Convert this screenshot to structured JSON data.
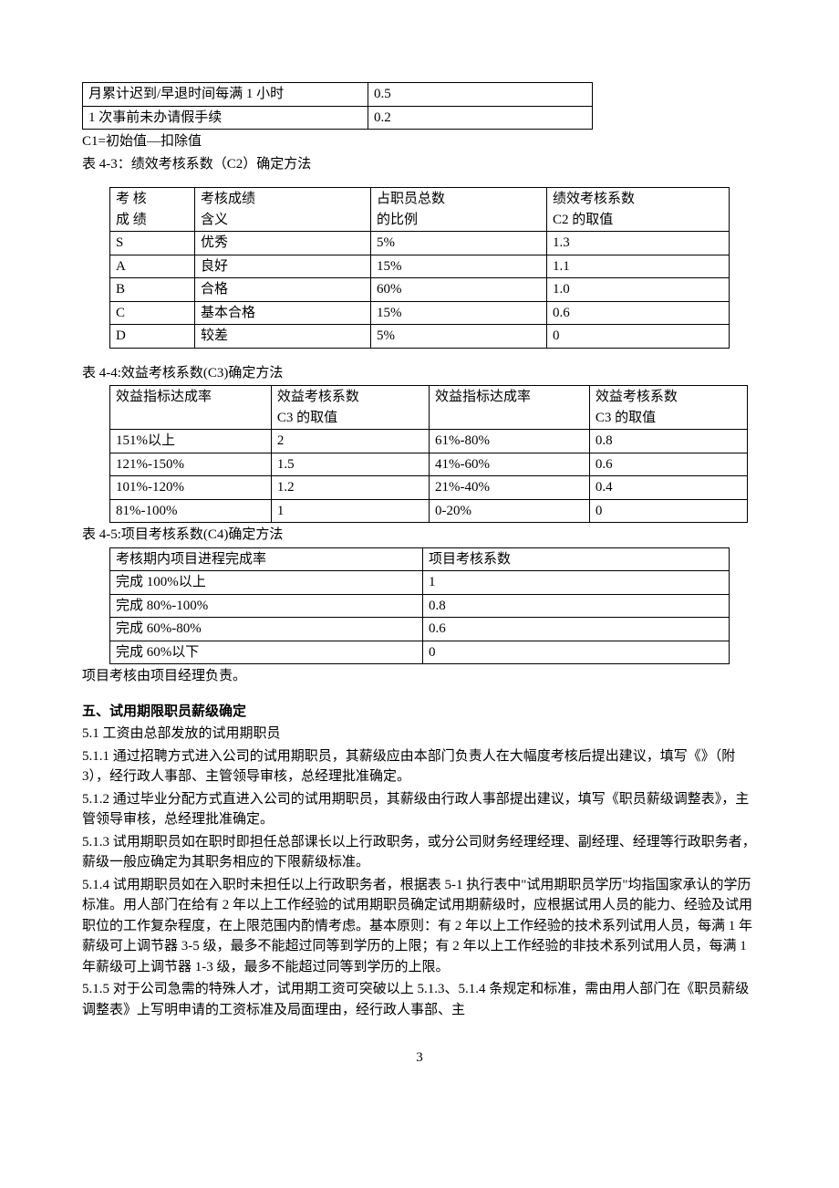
{
  "table1": {
    "rows": [
      [
        "月累计迟到/早退时间每满 1 小时",
        "0.5"
      ],
      [
        "1 次事前未办请假手续",
        "0.2"
      ]
    ]
  },
  "text_c1": "C1=初始值—扣除值",
  "text_t43": "表 4-3：绩效考核系数（C2）确定方法",
  "table2": {
    "header": [
      [
        "考 核",
        "考核成绩",
        "占职员总数",
        "绩效考核系数"
      ],
      [
        "成 绩",
        "含义",
        "的比例",
        "C2 的取值"
      ]
    ],
    "rows": [
      [
        "S",
        "优秀",
        "5%",
        "1.3"
      ],
      [
        "A",
        "良好",
        "15%",
        "1.1"
      ],
      [
        "B",
        "合格",
        "60%",
        "1.0"
      ],
      [
        "C",
        "基本合格",
        "15%",
        "0.6"
      ],
      [
        "D",
        "较差",
        "5%",
        "0"
      ]
    ]
  },
  "text_t44": "表 4-4:效益考核系数(C3)确定方法",
  "table3": {
    "header": [
      "效益指标达成率",
      "效益考核系数\nC3 的取值",
      "效益指标达成率",
      "效益考核系数\nC3 的取值"
    ],
    "rows": [
      [
        "151%以上",
        "2",
        "61%-80%",
        "0.8"
      ],
      [
        "121%-150%",
        "1.5",
        "41%-60%",
        "0.6"
      ],
      [
        "101%-120%",
        "1.2",
        "21%-40%",
        "0.4"
      ],
      [
        "81%-100%",
        "1",
        "0-20%",
        "0"
      ]
    ]
  },
  "text_t45": "表 4-5:项目考核系数(C4)确定方法",
  "table4": {
    "header": [
      "考核期内项目进程完成率",
      "项目考核系数"
    ],
    "rows": [
      [
        "完成 100%以上",
        "1"
      ],
      [
        "完成 80%-100%",
        "0.8"
      ],
      [
        "完成 60%-80%",
        "0.6"
      ],
      [
        "完成 60%以下",
        "0"
      ]
    ]
  },
  "text_proj": "项目考核由项目经理负责。",
  "section5_title": "五、试用期限职员薪级确定",
  "p51": "5.1 工资由总部发放的试用期职员",
  "p511": "5.1.1 通过招聘方式进入公司的试用期职员，其薪级应由本部门负责人在大幅度考核后提出建议，填写《》（附 3），经行政人事部、主管领导审核，总经理批准确定。",
  "p512": "5.1.2 通过毕业分配方式直进入公司的试用期职员，其薪级由行政人事部提出建议，填写《职员薪级调整表》，主管领导审核，总经理批准确定。",
  "p513": "5.1.3 试用期职员如在职时即担任总部课长以上行政职务，或分公司财务经理经理、副经理、经理等行政职务者，薪级一般应确定为其职务相应的下限薪级标准。",
  "p514": "5.1.4 试用期职员如在入职时未担任以上行政职务者，根据表 5-1 执行表中\"试用期职员学历\"均指国家承认的学历标准。用人部门在给有 2 年以上工作经验的试用期职员确定试用期薪级时，应根据试用人员的能力、经验及试用职位的工作复杂程度，在上限范围内酌情考虑。基本原则：有 2 年以上工作经验的技术系列试用人员，每满 1 年薪级可上调节器 3-5 级，最多不能超过同等到学历的上限；有 2 年以上工作经验的非技术系列试用人员，每满 1 年薪级可上调节器 1-3 级，最多不能超过同等到学历的上限。",
  "p515": "5.1.5 对于公司急需的特殊人才，试用期工资可突破以上 5.1.3、5.1.4 条规定和标准，需由用人部门在《职员薪级调整表》上写明申请的工资标准及局面理由，经行政人事部、主",
  "page_number": "3"
}
